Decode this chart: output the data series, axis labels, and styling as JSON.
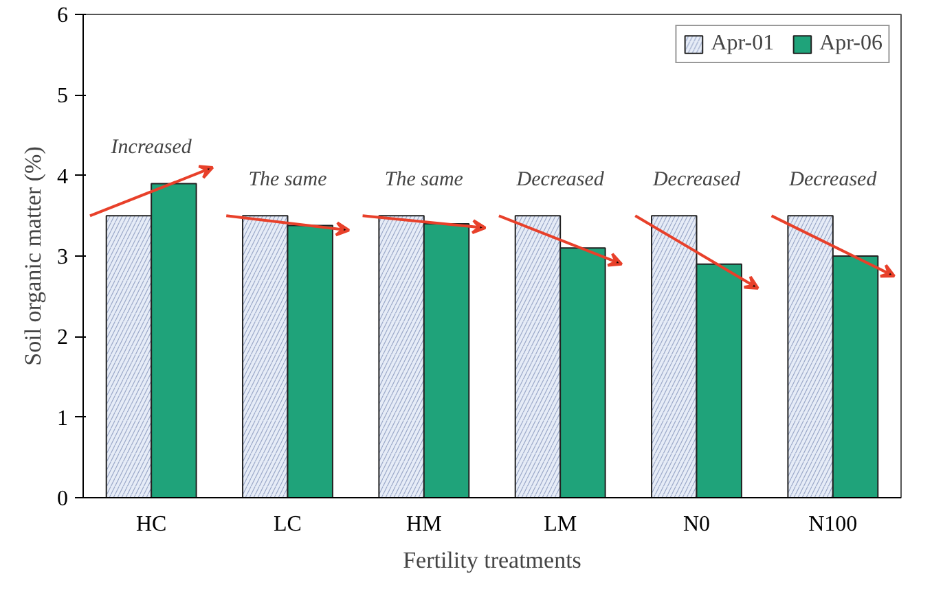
{
  "chart_data": {
    "type": "bar",
    "xlabel": "Fertility treatments",
    "ylabel": "Soil organic matter (%)",
    "categories": [
      "HC",
      "LC",
      "HM",
      "LM",
      "N0",
      "N100"
    ],
    "series": [
      {
        "name": "Apr-01",
        "color": "#e6ecf7",
        "values": [
          3.5,
          3.5,
          3.5,
          3.5,
          3.5,
          3.5
        ]
      },
      {
        "name": "Apr-06",
        "color": "#1fa37a",
        "values": [
          3.9,
          3.38,
          3.4,
          3.1,
          2.9,
          3.0
        ]
      }
    ],
    "ylim": [
      0,
      6
    ],
    "yticks": [
      0,
      1,
      2,
      3,
      4,
      5,
      6
    ],
    "grid": false,
    "legend": "top right",
    "annotations": [
      {
        "text": "Increased",
        "x": "HC",
        "y": 3.9
      },
      {
        "text": "The same",
        "x": "LC",
        "y": 3.5
      },
      {
        "text": "The same",
        "x": "HM",
        "y": 3.5
      },
      {
        "text": "Decreased",
        "x": "LM",
        "y": 3.5
      },
      {
        "text": "Decreased",
        "x": "N0",
        "y": 3.5
      },
      {
        "text": "Decreased",
        "x": "N100",
        "y": 3.5
      }
    ]
  }
}
